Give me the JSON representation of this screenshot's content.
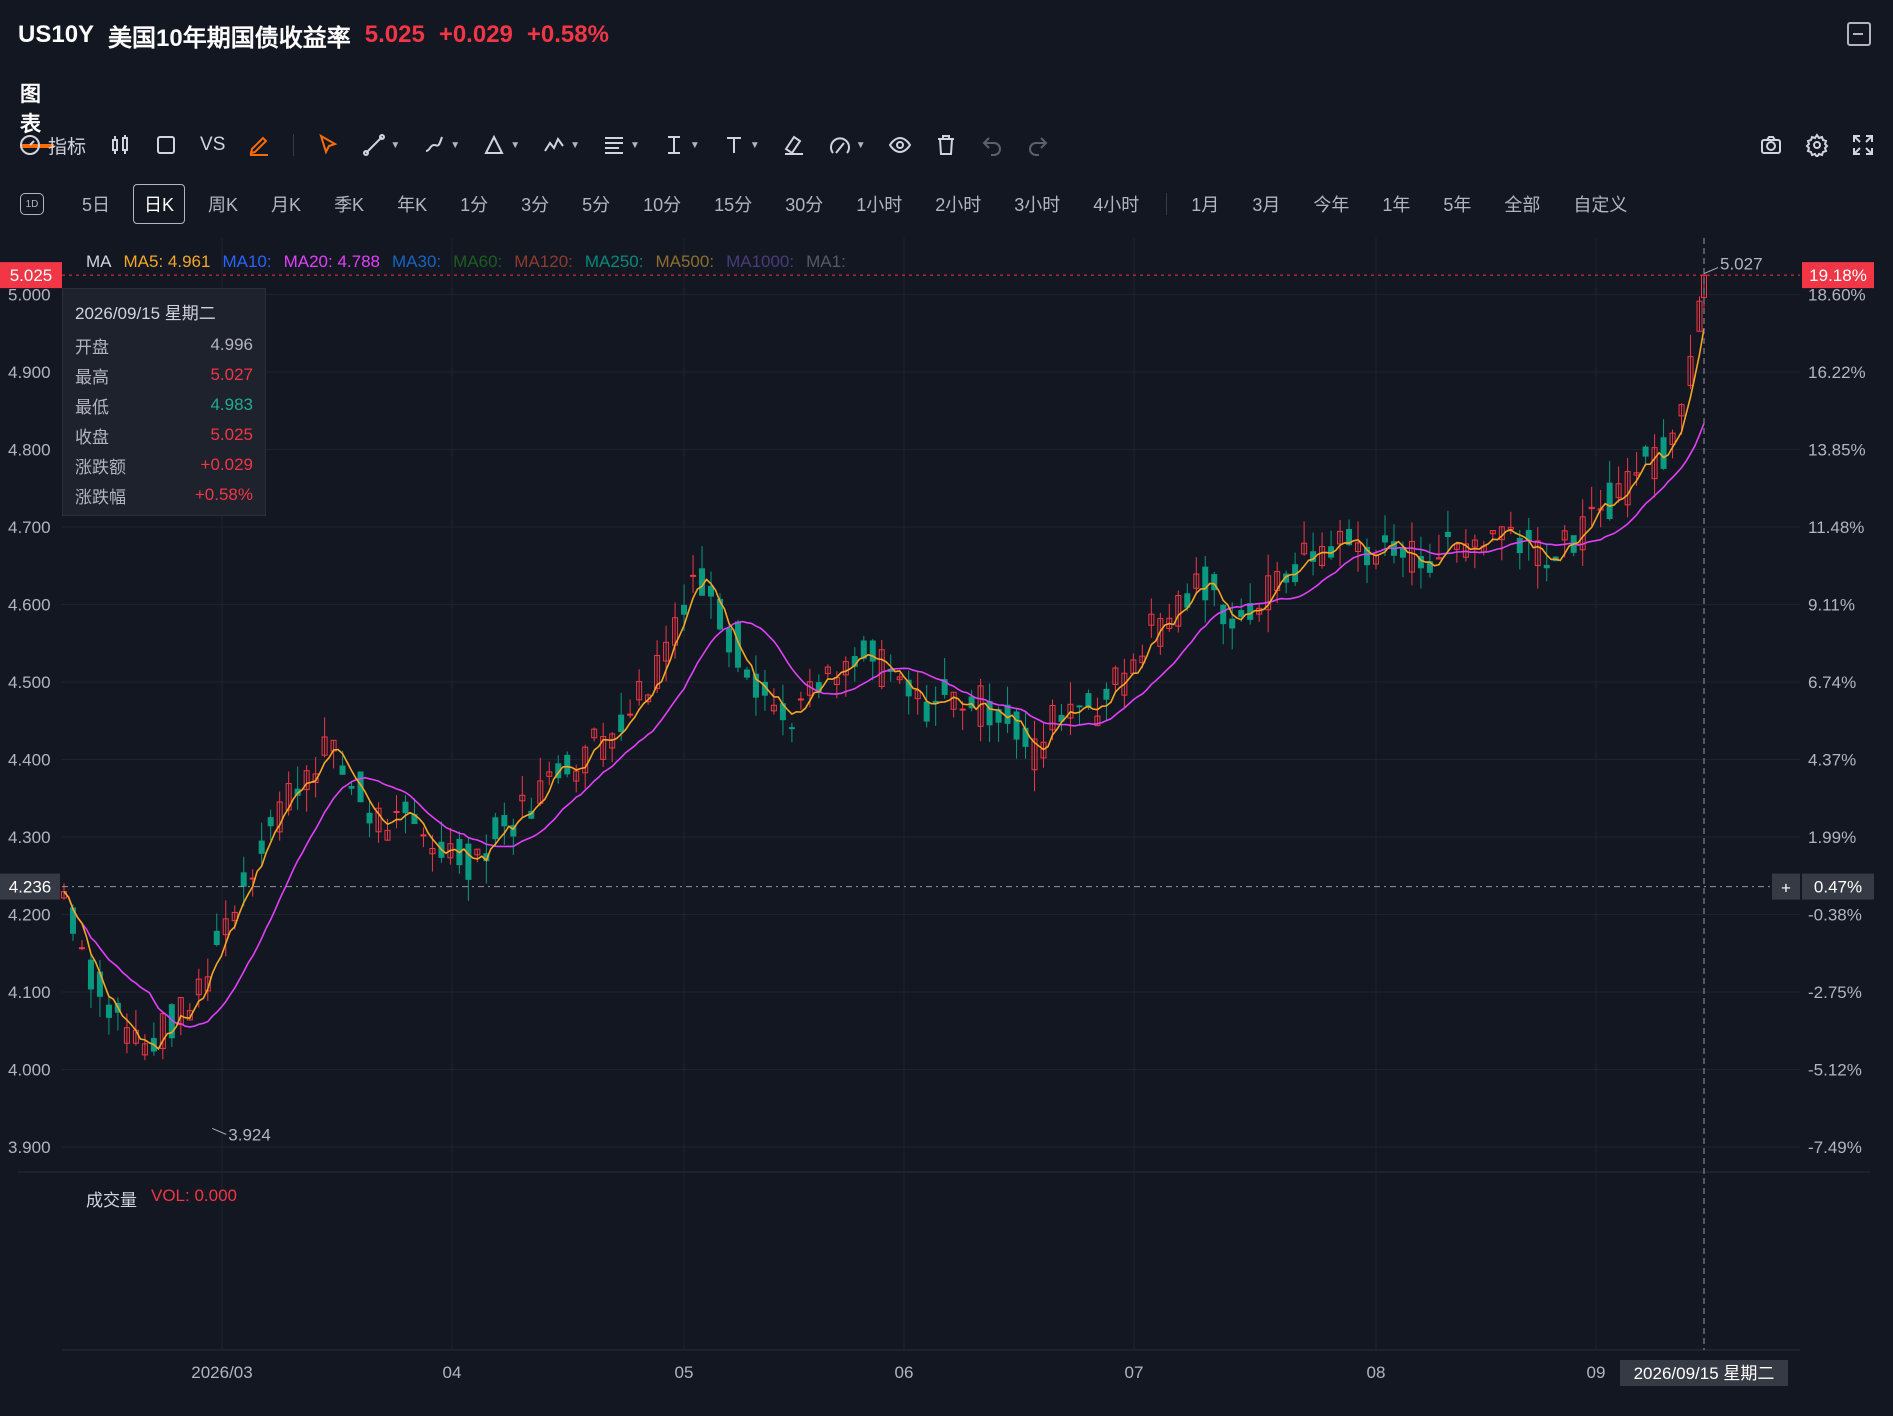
{
  "header": {
    "symbol": "US10Y",
    "name": "美国10年期国债收益率",
    "price": "5.025",
    "change": "+0.029",
    "change_pct": "+0.58%"
  },
  "tabs": [
    "图表"
  ],
  "toolbar": {
    "indicator_label": "指标",
    "compare_label": "VS"
  },
  "periods": [
    "5日",
    "日K",
    "周K",
    "月K",
    "季K",
    "年K",
    "1分",
    "3分",
    "5分",
    "10分",
    "15分",
    "30分",
    "1小时",
    "2小时",
    "3小时",
    "4小时"
  ],
  "ranges": [
    "1月",
    "3月",
    "今年",
    "1年",
    "5年",
    "全部",
    "自定义"
  ],
  "period_icon_label": "1D",
  "ma_legend": {
    "title": "MA",
    "items": [
      {
        "label": "MA5: 4.961",
        "color": "#f5a623"
      },
      {
        "label": "MA10:",
        "color": "#2962ff"
      },
      {
        "label": "MA20: 4.788",
        "color": "#e040fb"
      },
      {
        "label": "MA30:",
        "color": "#1565c0"
      },
      {
        "label": "MA60:",
        "color": "#1b5e20"
      },
      {
        "label": "MA120:",
        "color": "#8d3b2e"
      },
      {
        "label": "MA250:",
        "color": "#00897b"
      },
      {
        "label": "MA500:",
        "color": "#8d6e2e"
      },
      {
        "label": "MA1000:",
        "color": "#4a3b7a"
      },
      {
        "label": "MA1:",
        "color": "#555a66"
      }
    ]
  },
  "tooltip": {
    "date": "2026/09/15 星期二",
    "rows": [
      {
        "label": "开盘",
        "value": "4.996",
        "color": "#b2b5be"
      },
      {
        "label": "最高",
        "value": "5.027",
        "color": "#f23645"
      },
      {
        "label": "最低",
        "value": "4.983",
        "color": "#22ab94"
      },
      {
        "label": "收盘",
        "value": "5.025",
        "color": "#f23645"
      },
      {
        "label": "涨跌额",
        "value": "+0.029",
        "color": "#f23645"
      },
      {
        "label": "涨跌幅",
        "value": "+0.58%",
        "color": "#f23645"
      }
    ]
  },
  "volume": {
    "title": "成交量",
    "value": "VOL: 0.000"
  },
  "colors": {
    "up": "#f23645",
    "down": "#089981",
    "ma5": "#f5a623",
    "ma20": "#e040fb",
    "bg": "#131722"
  },
  "chart_data": {
    "type": "candlestick",
    "y_left_ticks": [
      "5.000",
      "4.900",
      "4.800",
      "4.700",
      "4.600",
      "4.500",
      "4.400",
      "4.300",
      "4.200",
      "4.100",
      "4.000",
      "3.900"
    ],
    "y_right_ticks": [
      "18.60%",
      "16.22%",
      "13.85%",
      "11.48%",
      "9.11%",
      "6.74%",
      "4.37%",
      "1.99%",
      "-0.38%",
      "-2.75%",
      "-5.12%",
      "-7.49%"
    ],
    "x_ticks": [
      "2026/03",
      "04",
      "05",
      "06",
      "07",
      "08",
      "09"
    ],
    "ylim": [
      3.86,
      5.06
    ],
    "last_price": "5.025",
    "last_price_pct": "19.18%",
    "cursor_price": "4.236",
    "cursor_pct": "0.47%",
    "cursor_date": "2026/09/15 星期二",
    "high_label": "5.027",
    "low_label": "3.924",
    "ma5_last": 4.961,
    "ma20_last": 4.788
  }
}
